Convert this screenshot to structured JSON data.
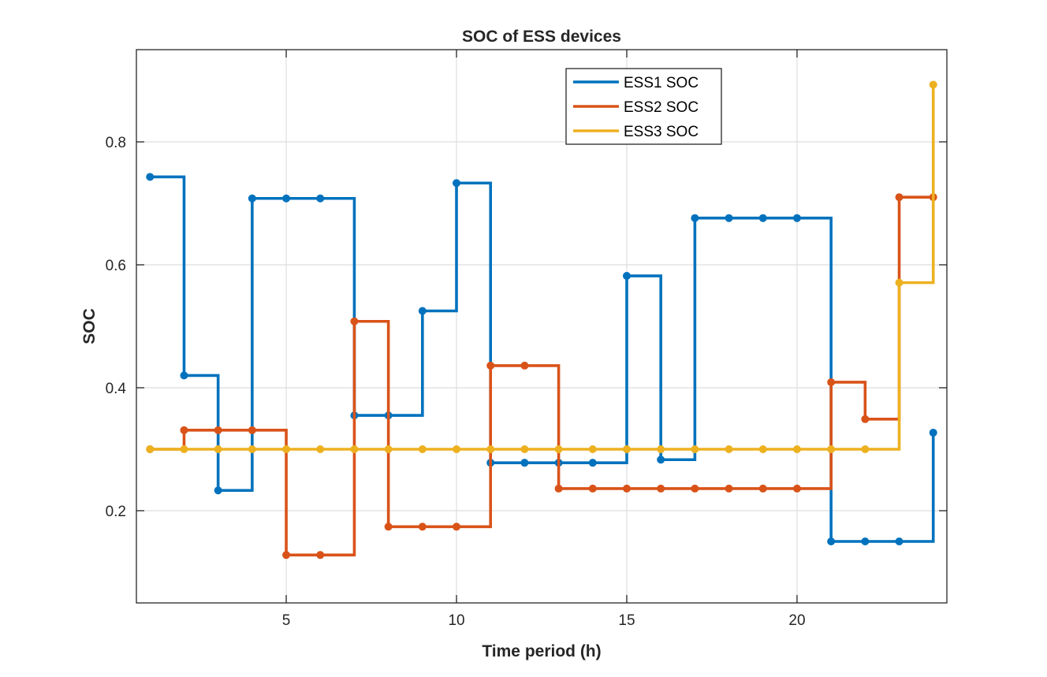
{
  "chart_data": {
    "type": "line",
    "subtype": "stairs",
    "title": "SOC of ESS devices",
    "xlabel": "Time period (h)",
    "ylabel": "SOC",
    "xlim": [
      0.6,
      24.4
    ],
    "ylim": [
      0.05,
      0.95
    ],
    "xticks": [
      5,
      10,
      15,
      20
    ],
    "xtick_labels": [
      "5",
      "10",
      "15",
      "20"
    ],
    "yticks": [
      0.2,
      0.4,
      0.6,
      0.8
    ],
    "ytick_labels": [
      "0.2",
      "0.4",
      "0.6",
      "0.8"
    ],
    "grid": true,
    "legend_position": "top-center",
    "x": [
      1,
      2,
      3,
      4,
      5,
      6,
      7,
      8,
      9,
      10,
      11,
      12,
      13,
      14,
      15,
      16,
      17,
      18,
      19,
      20,
      21,
      22,
      23,
      24
    ],
    "series": [
      {
        "name": "ESS1 SOC",
        "color": "#0072BD",
        "values": [
          0.743,
          0.42,
          0.233,
          0.708,
          0.708,
          0.708,
          0.355,
          0.355,
          0.525,
          0.733,
          0.278,
          0.278,
          0.278,
          0.278,
          0.582,
          0.283,
          0.676,
          0.676,
          0.676,
          0.676,
          0.15,
          0.15,
          0.15,
          0.327
        ]
      },
      {
        "name": "ESS2 SOC",
        "color": "#D95319",
        "values": [
          0.3,
          0.331,
          0.331,
          0.331,
          0.128,
          0.128,
          0.508,
          0.174,
          0.174,
          0.174,
          0.436,
          0.436,
          0.236,
          0.236,
          0.236,
          0.236,
          0.236,
          0.236,
          0.236,
          0.236,
          0.409,
          0.349,
          0.71,
          0.71
        ]
      },
      {
        "name": "ESS3 SOC",
        "color": "#EDB120",
        "values": [
          0.3,
          0.3,
          0.3,
          0.3,
          0.3,
          0.3,
          0.3,
          0.3,
          0.3,
          0.3,
          0.3,
          0.3,
          0.3,
          0.3,
          0.3,
          0.3,
          0.3,
          0.3,
          0.3,
          0.3,
          0.3,
          0.3,
          0.571,
          0.893
        ]
      }
    ]
  }
}
